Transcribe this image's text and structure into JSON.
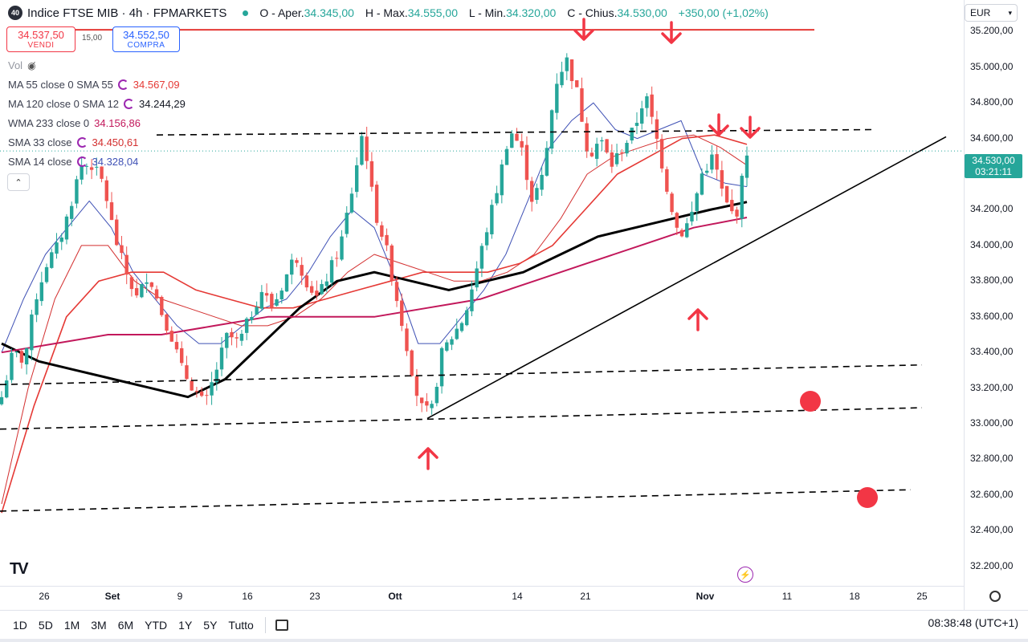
{
  "header": {
    "badge": "40",
    "symbol": "Indice FTSE MIB · 4h · FPMARKETS",
    "open_label": "O - Aper.",
    "open": "34.345,00",
    "high_label": "H - Max.",
    "high": "34.555,00",
    "low_label": "L - Min.",
    "low": "34.320,00",
    "close_label": "C - Chius.",
    "close": "34.530,00",
    "change": "+350,00 (+1,02%)"
  },
  "trade": {
    "sell_price": "34.537,50",
    "sell_label": "VENDI",
    "spread": "15,00",
    "buy_price": "34.552,50",
    "buy_label": "COMPRA"
  },
  "indicators": {
    "vol_label": "Vol",
    "ma55_label": "MA 55 close 0 SMA 55",
    "ma55_value": "34.567,09",
    "ma120_label": "MA 120 close 0 SMA 12",
    "ma120_value": "34.244,29",
    "wma233_label": "WMA 233 close 0",
    "wma233_value": "34.156,86",
    "sma33_label": "SMA 33 close",
    "sma33_value": "34.450,61",
    "sma14_label": "SMA 14 close",
    "sma14_value": "34.328,04",
    "colors": {
      "ma55": "#e53935",
      "ma120": "#000000",
      "wma233": "#c2185b",
      "sma33": "#d32f2f",
      "sma14": "#3f51b5"
    }
  },
  "axis": {
    "currency": "EUR",
    "y_ticks": [
      "35.200,00",
      "35.000,00",
      "34.800,00",
      "34.600,00",
      "34.400,00",
      "34.200,00",
      "34.000,00",
      "33.800,00",
      "33.600,00",
      "33.400,00",
      "33.200,00",
      "33.000,00",
      "32.800,00",
      "32.600,00",
      "32.400,00",
      "32.200,00"
    ],
    "current_price": "34.530,00",
    "countdown": "03:21:11",
    "x_ticks": [
      "26",
      "Set",
      "9",
      "16",
      "23",
      "Ott",
      "14",
      "21",
      "Nov",
      "11",
      "18",
      "25"
    ]
  },
  "ranges": [
    "1D",
    "5D",
    "1M",
    "3M",
    "6M",
    "YTD",
    "1Y",
    "5Y",
    "Tutto"
  ],
  "clock": "08:38:48 (UTC+1)",
  "icons": [
    "eye-off-icon",
    "cycle-icon",
    "chevron-up-icon",
    "calendar-icon",
    "gear-icon",
    "bolt-icon",
    "tradingview-logo"
  ],
  "chart_data": {
    "type": "candlestick",
    "interval": "4h",
    "y_range": [
      32100,
      35350
    ],
    "colors": {
      "up": "#26a69a",
      "down": "#ef5350"
    },
    "close_path": [
      33150,
      33400,
      33350,
      33700,
      33900,
      34000,
      34200,
      34450,
      34450,
      34350,
      34050,
      33850,
      33700,
      33850,
      33650,
      33500,
      33300,
      33200,
      33100,
      33300,
      33500,
      33450,
      33600,
      33750,
      33650,
      33800,
      33950,
      33800,
      33700,
      33850,
      34000,
      34300,
      34650,
      34200,
      34000,
      33700,
      33400,
      33100,
      33050,
      33400,
      33500,
      33600,
      33850,
      34100,
      34350,
      34650,
      34550,
      34250,
      34400,
      34900,
      35050,
      34850,
      34500,
      34600,
      34450,
      34550,
      34650,
      34850,
      34600,
      34300,
      34050,
      34150,
      34400,
      34500,
      34250,
      34150,
      34530
    ],
    "moving_averages": [
      {
        "name": "SMA 14",
        "color": "#3f51b5",
        "values": [
          33400,
          33700,
          33950,
          34100,
          34250,
          34100,
          33850,
          33700,
          33550,
          33450,
          33450,
          33550,
          33650,
          33700,
          33850,
          34050,
          34200,
          34100,
          33800,
          33450,
          33450,
          33600,
          33750,
          33950,
          34250,
          34550,
          34700,
          34800,
          34650,
          34600,
          34650,
          34700,
          34400,
          34350,
          34330
        ]
      },
      {
        "name": "SMA 33",
        "color": "#d32f2f",
        "values": [
          32550,
          33200,
          33700,
          34000,
          34000,
          33800,
          33700,
          33650,
          33600,
          33550,
          33550,
          33600,
          33700,
          33850,
          33950,
          33900,
          33850,
          33800,
          33800,
          33850,
          33950,
          34150,
          34400,
          34500,
          34550,
          34600,
          34620,
          34550,
          34450
        ]
      },
      {
        "name": "MA 55",
        "color": "#e53935",
        "values": [
          32500,
          33100,
          33600,
          33800,
          33850,
          33850,
          33750,
          33700,
          33650,
          33650,
          33700,
          33750,
          33800,
          33850,
          33850,
          33850,
          33900,
          34000,
          34200,
          34400,
          34500,
          34600,
          34620,
          34567
        ]
      },
      {
        "name": "MA 120",
        "color": "#000000",
        "values": [
          33450,
          33350,
          33300,
          33250,
          33200,
          33150,
          33250,
          33450,
          33650,
          33800,
          33850,
          33800,
          33750,
          33800,
          33850,
          33950,
          34050,
          34100,
          34150,
          34200,
          34244
        ]
      },
      {
        "name": "WMA 233",
        "color": "#c2185b",
        "values": [
          33400,
          33450,
          33500,
          33500,
          33550,
          33600,
          33600,
          33600,
          33650,
          33700,
          33800,
          33900,
          34000,
          34100,
          34157
        ]
      }
    ],
    "trendlines": [
      {
        "style": "solid",
        "color": "#e53935",
        "level": 35210
      },
      {
        "style": "dashed",
        "color": "#000000",
        "from": 34620,
        "to": 34650
      },
      {
        "style": "dashed",
        "color": "#000000",
        "from": 33220,
        "to": 33330
      },
      {
        "style": "dashed",
        "color": "#000000",
        "from": 32970,
        "to": 33090
      },
      {
        "style": "dashed",
        "color": "#000000",
        "from": 32510,
        "to": 32630
      },
      {
        "style": "solid",
        "color": "#000000",
        "from": 33030,
        "to": 34610
      }
    ],
    "annotations": [
      {
        "type": "arrow-down",
        "count": 4,
        "color": "#f23645"
      },
      {
        "type": "arrow-up",
        "count": 2,
        "color": "#f23645"
      },
      {
        "type": "dot",
        "count": 2,
        "color": "#f23645"
      }
    ]
  }
}
